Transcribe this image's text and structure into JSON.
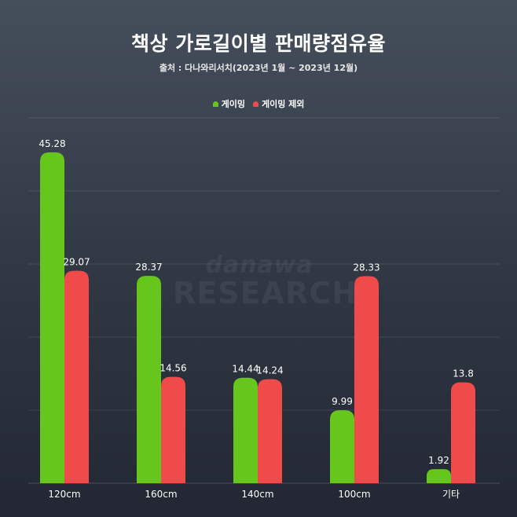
{
  "title": "책상 가로길이별 판매량점유율",
  "subtitle": "출처 : 다나와리서치(2023년 1월 ~ 2023년 12월)",
  "watermark": {
    "line1": "danawa",
    "line2": "RESEARCH"
  },
  "colors": {
    "gaming": "#66c61c",
    "non_gaming": "#ef4b4b"
  },
  "chart_data": {
    "type": "bar",
    "title": "책상 가로길이별 판매량점유율",
    "xlabel": "",
    "ylabel": "",
    "ylim": [
      0,
      50
    ],
    "grid": true,
    "legend_position": "top-center",
    "categories": [
      "120cm",
      "160cm",
      "140cm",
      "100cm",
      "기타"
    ],
    "series": [
      {
        "name": "게이밍",
        "values": [
          45.28,
          28.37,
          14.44,
          9.99,
          1.92
        ]
      },
      {
        "name": "게이밍 제외",
        "values": [
          29.07,
          14.56,
          14.24,
          28.33,
          13.8
        ]
      }
    ]
  }
}
